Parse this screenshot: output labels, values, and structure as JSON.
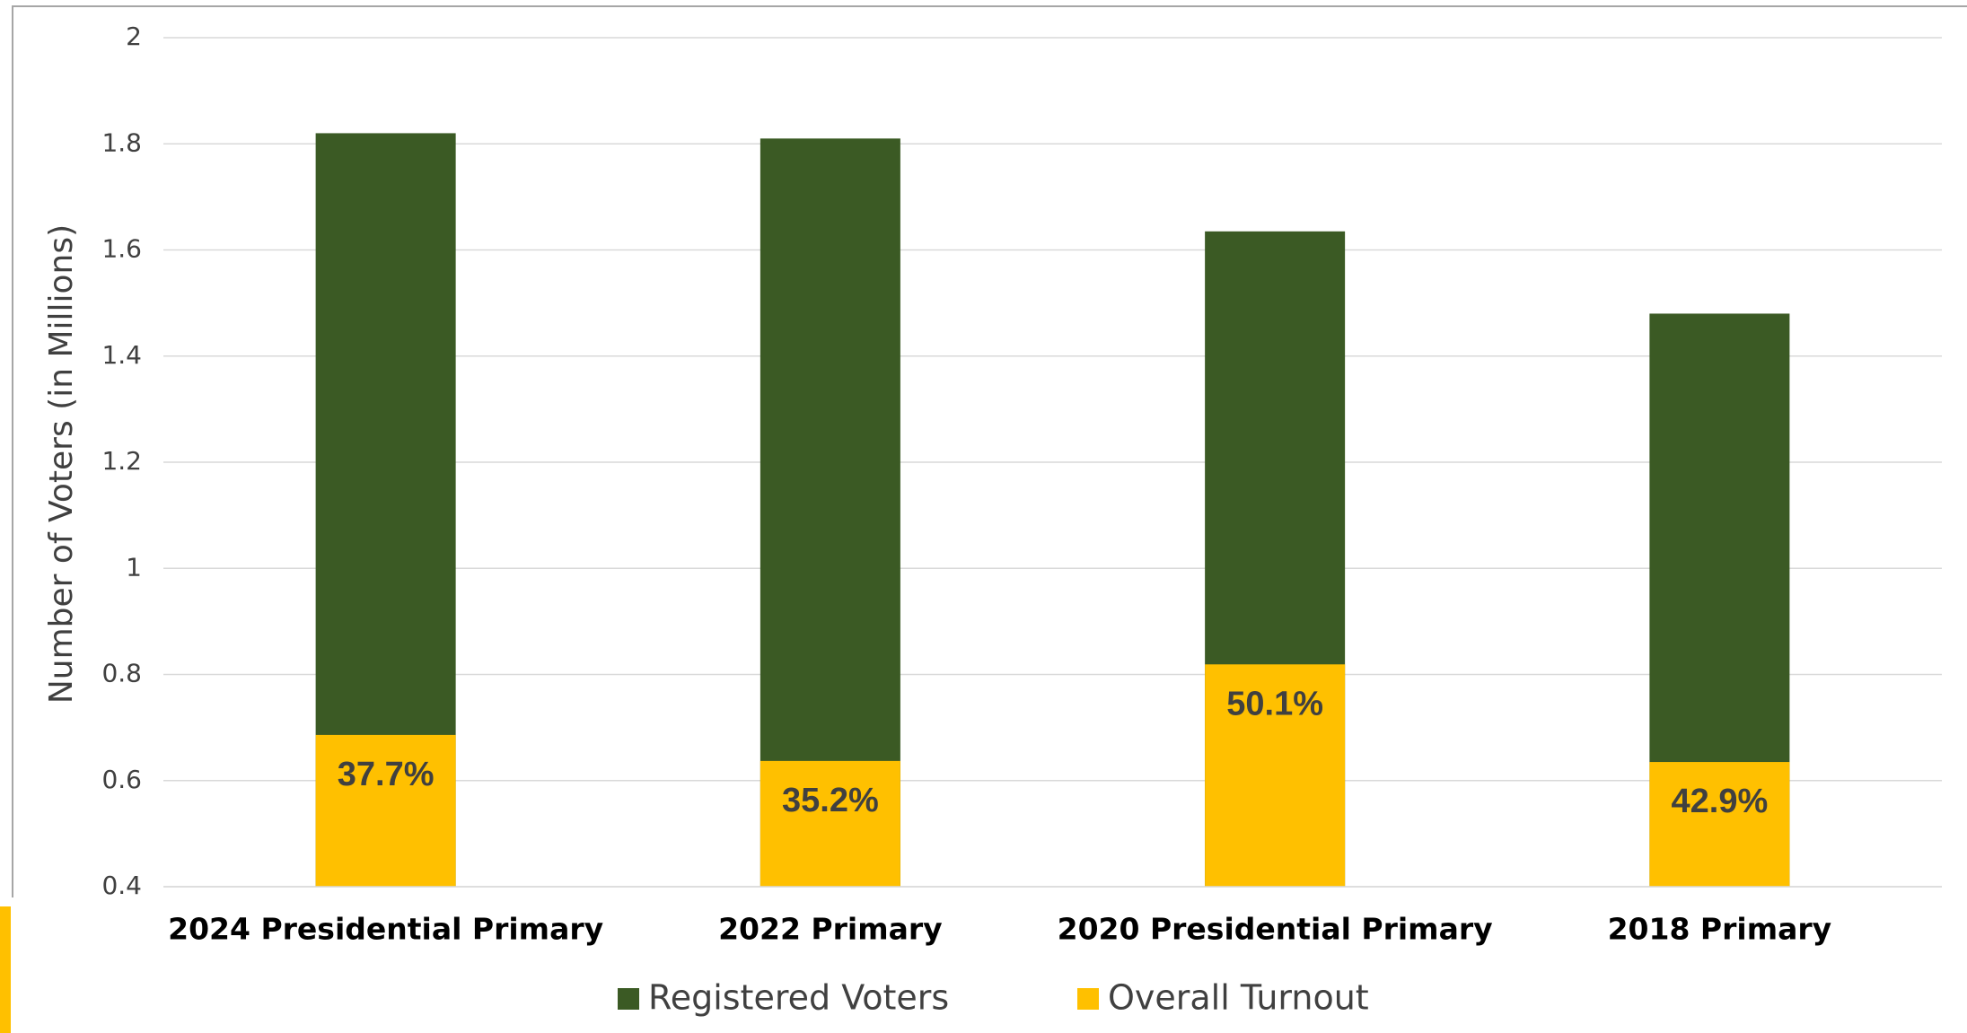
{
  "chart_data": {
    "type": "bar",
    "y_axis_label": "Number of Voters (in Millions)",
    "categories": [
      "2024 Presidential Primary",
      "2022 Primary",
      "2020 Presidential Primary",
      "2018 Primary"
    ],
    "series": [
      {
        "name": "Registered Voters",
        "color": "#3b5a24",
        "values": [
          1.82,
          1.81,
          1.635,
          1.48
        ]
      },
      {
        "name": "Overall Turnout",
        "color": "#ffc000",
        "values": [
          0.686,
          0.637,
          0.819,
          0.635
        ]
      }
    ],
    "annotations": [
      "37.7%",
      "35.2%",
      "50.1%",
      "42.9%"
    ],
    "ylim": [
      0.4,
      2
    ],
    "yticks": [
      0.4,
      0.6,
      0.8,
      1,
      1.2,
      1.4,
      1.6,
      1.8,
      2
    ],
    "grid": true
  }
}
